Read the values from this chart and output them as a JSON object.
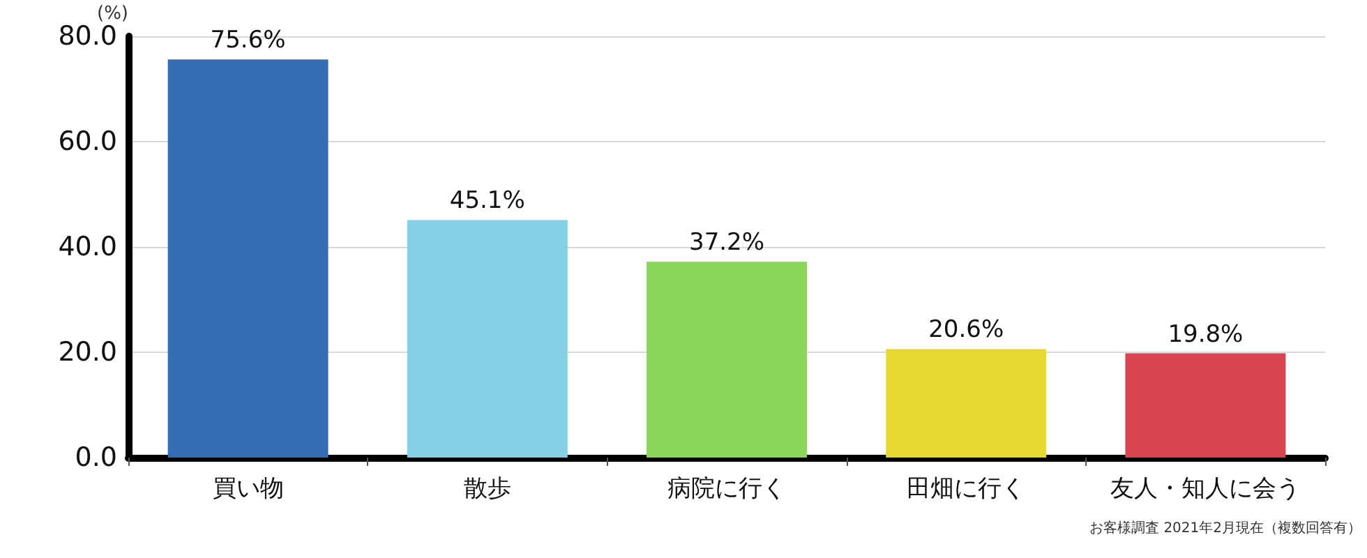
{
  "chart_data": {
    "type": "bar",
    "ylabel": "(%)",
    "categories": [
      "買い物",
      "散歩",
      "病院に行く",
      "田畑に行く",
      "友人・知人に会う"
    ],
    "values": [
      75.6,
      45.1,
      37.2,
      20.6,
      19.8
    ],
    "colors": [
      "#356db5",
      "#84d0e6",
      "#8ad55c",
      "#e8d832",
      "#da4350"
    ],
    "value_labels": [
      "75.6%",
      "45.1%",
      "37.2%",
      "20.6%",
      "19.8%"
    ],
    "ylim": [
      0,
      80
    ],
    "yticks": [
      {
        "value": 0,
        "label": "0.0"
      },
      {
        "value": 20,
        "label": "20.0"
      },
      {
        "value": 40,
        "label": "40.0"
      },
      {
        "value": 60,
        "label": "60.0"
      },
      {
        "value": 80,
        "label": "80.0"
      }
    ],
    "grid": "y",
    "annotations": [
      "お客様調査 2021年2月現在（複数回答有）"
    ]
  }
}
